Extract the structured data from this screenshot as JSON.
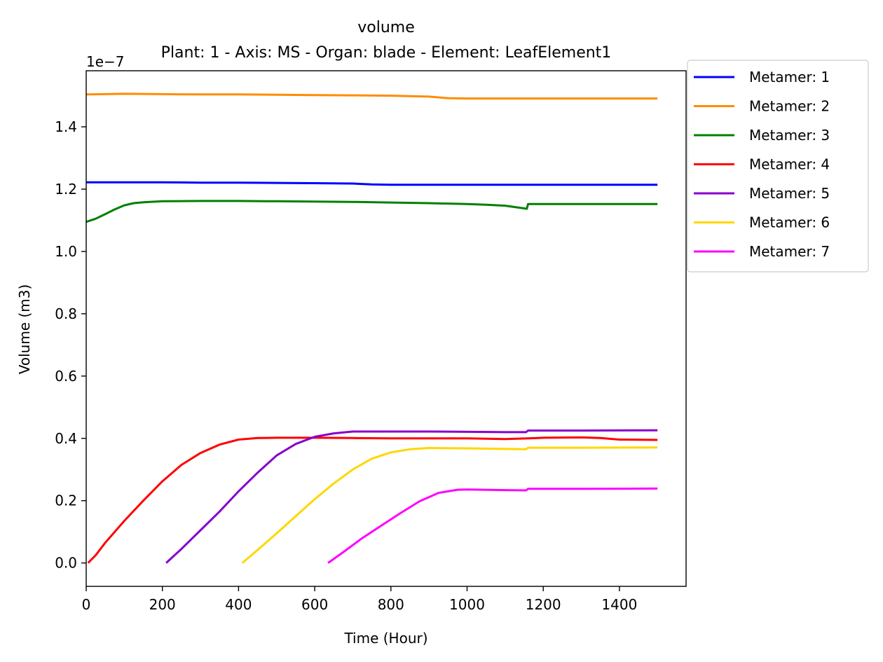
{
  "chart_data": {
    "type": "line",
    "title": "volume",
    "subtitle": "Plant: 1 - Axis: MS - Organ: blade - Element: LeafElement1",
    "xlabel": "Time (Hour)",
    "ylabel": "Volume (m3)",
    "y_offset_label": "1e−7",
    "xlim": [
      0,
      1575
    ],
    "ylim": [
      -0.075,
      1.58
    ],
    "y_scale_factor": "1e-7",
    "xticks": [
      0,
      200,
      400,
      600,
      800,
      1000,
      1200,
      1400
    ],
    "yticks": [
      0.0,
      0.2,
      0.4,
      0.6,
      0.8,
      1.0,
      1.2,
      1.4
    ],
    "ytick_labels": [
      "0.0",
      "0.2",
      "0.4",
      "0.6",
      "0.8",
      "1.0",
      "1.2",
      "1.4"
    ],
    "grid": false,
    "legend_position": "outside-top-right",
    "series": [
      {
        "name": "Metamer: 1",
        "color": "#0000ff",
        "points": [
          [
            0,
            1.222
          ],
          [
            100,
            1.222
          ],
          [
            200,
            1.222
          ],
          [
            300,
            1.221
          ],
          [
            400,
            1.221
          ],
          [
            500,
            1.22
          ],
          [
            600,
            1.219
          ],
          [
            700,
            1.218
          ],
          [
            750,
            1.215
          ],
          [
            800,
            1.214
          ],
          [
            1000,
            1.214
          ],
          [
            1200,
            1.214
          ],
          [
            1500,
            1.214
          ]
        ]
      },
      {
        "name": "Metamer: 2",
        "color": "#ff8c00",
        "points": [
          [
            0,
            1.504
          ],
          [
            100,
            1.506
          ],
          [
            200,
            1.505
          ],
          [
            300,
            1.504
          ],
          [
            400,
            1.504
          ],
          [
            500,
            1.503
          ],
          [
            600,
            1.502
          ],
          [
            700,
            1.501
          ],
          [
            800,
            1.5
          ],
          [
            900,
            1.497
          ],
          [
            950,
            1.492
          ],
          [
            1000,
            1.491
          ],
          [
            1200,
            1.491
          ],
          [
            1500,
            1.491
          ]
        ]
      },
      {
        "name": "Metamer: 3",
        "color": "#008000",
        "points": [
          [
            0,
            1.095
          ],
          [
            25,
            1.105
          ],
          [
            50,
            1.12
          ],
          [
            75,
            1.135
          ],
          [
            100,
            1.148
          ],
          [
            125,
            1.155
          ],
          [
            150,
            1.158
          ],
          [
            200,
            1.161
          ],
          [
            300,
            1.162
          ],
          [
            400,
            1.162
          ],
          [
            500,
            1.161
          ],
          [
            600,
            1.16
          ],
          [
            700,
            1.159
          ],
          [
            800,
            1.157
          ],
          [
            900,
            1.155
          ],
          [
            1000,
            1.152
          ],
          [
            1050,
            1.15
          ],
          [
            1100,
            1.147
          ],
          [
            1157,
            1.137
          ],
          [
            1160,
            1.152
          ],
          [
            1200,
            1.152
          ],
          [
            1500,
            1.152
          ]
        ]
      },
      {
        "name": "Metamer: 4",
        "color": "#ff0000",
        "points": [
          [
            5,
            0.0
          ],
          [
            25,
            0.025
          ],
          [
            50,
            0.065
          ],
          [
            100,
            0.135
          ],
          [
            150,
            0.2
          ],
          [
            200,
            0.262
          ],
          [
            250,
            0.315
          ],
          [
            300,
            0.353
          ],
          [
            350,
            0.38
          ],
          [
            400,
            0.396
          ],
          [
            450,
            0.401
          ],
          [
            500,
            0.402
          ],
          [
            600,
            0.402
          ],
          [
            700,
            0.401
          ],
          [
            800,
            0.4
          ],
          [
            900,
            0.4
          ],
          [
            1000,
            0.4
          ],
          [
            1100,
            0.398
          ],
          [
            1160,
            0.4
          ],
          [
            1200,
            0.402
          ],
          [
            1300,
            0.403
          ],
          [
            1350,
            0.401
          ],
          [
            1400,
            0.396
          ],
          [
            1500,
            0.395
          ]
        ]
      },
      {
        "name": "Metamer: 5",
        "color": "#8800cc",
        "points": [
          [
            210,
            0.0
          ],
          [
            250,
            0.045
          ],
          [
            300,
            0.105
          ],
          [
            350,
            0.165
          ],
          [
            400,
            0.23
          ],
          [
            450,
            0.29
          ],
          [
            500,
            0.345
          ],
          [
            550,
            0.382
          ],
          [
            600,
            0.405
          ],
          [
            650,
            0.416
          ],
          [
            700,
            0.422
          ],
          [
            800,
            0.422
          ],
          [
            900,
            0.422
          ],
          [
            1000,
            0.421
          ],
          [
            1100,
            0.42
          ],
          [
            1155,
            0.42
          ],
          [
            1160,
            0.425
          ],
          [
            1300,
            0.425
          ],
          [
            1500,
            0.426
          ]
        ]
      },
      {
        "name": "Metamer: 6",
        "color": "#ffd700",
        "points": [
          [
            410,
            0.0
          ],
          [
            450,
            0.042
          ],
          [
            500,
            0.095
          ],
          [
            550,
            0.15
          ],
          [
            600,
            0.205
          ],
          [
            650,
            0.255
          ],
          [
            700,
            0.3
          ],
          [
            750,
            0.335
          ],
          [
            800,
            0.355
          ],
          [
            850,
            0.365
          ],
          [
            900,
            0.369
          ],
          [
            1000,
            0.368
          ],
          [
            1100,
            0.366
          ],
          [
            1155,
            0.365
          ],
          [
            1160,
            0.37
          ],
          [
            1300,
            0.37
          ],
          [
            1500,
            0.371
          ]
        ]
      },
      {
        "name": "Metamer: 7",
        "color": "#ff00ff",
        "points": [
          [
            635,
            0.0
          ],
          [
            675,
            0.035
          ],
          [
            725,
            0.08
          ],
          [
            775,
            0.12
          ],
          [
            825,
            0.16
          ],
          [
            875,
            0.198
          ],
          [
            925,
            0.225
          ],
          [
            975,
            0.235
          ],
          [
            1000,
            0.236
          ],
          [
            1100,
            0.234
          ],
          [
            1155,
            0.233
          ],
          [
            1160,
            0.238
          ],
          [
            1300,
            0.238
          ],
          [
            1500,
            0.239
          ]
        ]
      }
    ]
  }
}
